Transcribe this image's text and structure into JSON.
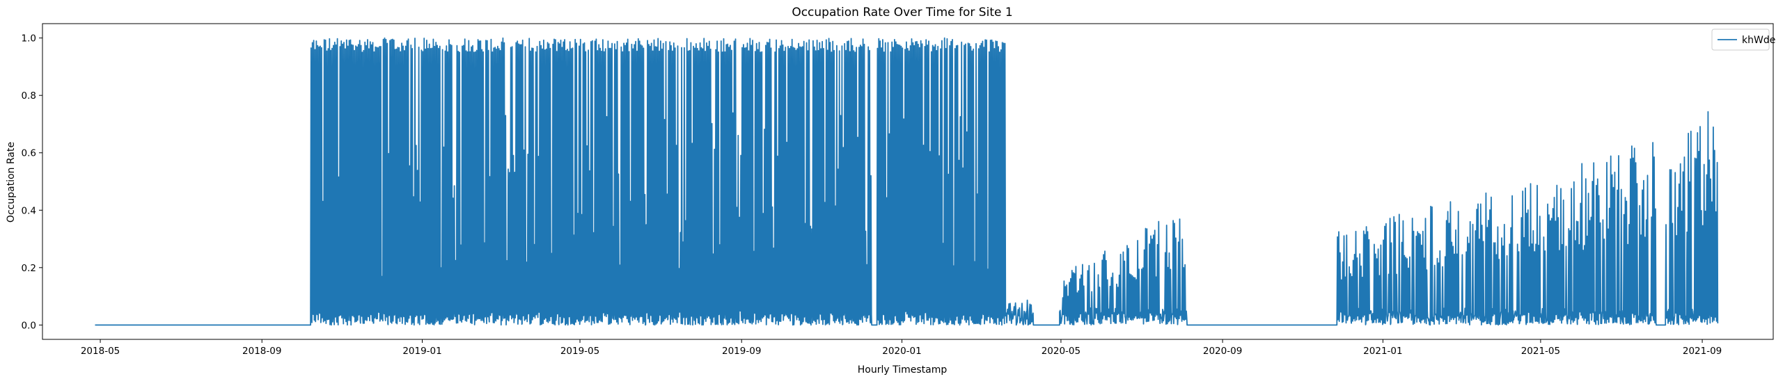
{
  "chart_data": {
    "type": "line",
    "title": "Occupation Rate Over Time for Site 1",
    "xlabel": "Hourly Timestamp",
    "ylabel": "Occupation Rate",
    "xlim": [
      "2018-03-18",
      "2021-10-25"
    ],
    "ylim": [
      -0.05,
      1.05
    ],
    "x_ticks": [
      {
        "date": "2018-05-01",
        "label": "2018-05"
      },
      {
        "date": "2018-09-01",
        "label": "2018-09"
      },
      {
        "date": "2019-01-01",
        "label": "2019-01"
      },
      {
        "date": "2019-05-01",
        "label": "2019-05"
      },
      {
        "date": "2019-09-01",
        "label": "2019-09"
      },
      {
        "date": "2020-01-01",
        "label": "2020-01"
      },
      {
        "date": "2020-05-01",
        "label": "2020-05"
      },
      {
        "date": "2020-09-01",
        "label": "2020-09"
      },
      {
        "date": "2021-01-01",
        "label": "2021-01"
      },
      {
        "date": "2021-05-01",
        "label": "2021-05"
      },
      {
        "date": "2021-09-01",
        "label": "2021-09"
      }
    ],
    "y_ticks": [
      {
        "value": 0.0,
        "label": "0.0"
      },
      {
        "value": 0.2,
        "label": "0.2"
      },
      {
        "value": 0.4,
        "label": "0.4"
      },
      {
        "value": 0.6,
        "label": "0.6"
      },
      {
        "value": 0.8,
        "label": "0.8"
      },
      {
        "value": 1.0,
        "label": "1.0"
      }
    ],
    "grid": false,
    "legend_position": "top-right",
    "series": [
      {
        "name": "khWdelivered",
        "color": "#1f77b4",
        "segments": [
          {
            "start": "2018-04-27",
            "end": "2018-10-08",
            "pattern": "flat",
            "level": 0
          },
          {
            "start": "2018-10-08",
            "end": "2019-12-09",
            "pattern": "full-daily",
            "peak_max": 1.0
          },
          {
            "start": "2019-12-09",
            "end": "2019-12-13",
            "pattern": "flat",
            "level": 0
          },
          {
            "start": "2019-12-13",
            "end": "2020-03-20",
            "pattern": "full-daily",
            "peak_max": 1.0
          },
          {
            "start": "2020-03-20",
            "end": "2020-04-10",
            "pattern": "low",
            "peak_max": 0.1
          },
          {
            "start": "2020-04-10",
            "end": "2020-04-30",
            "pattern": "flat",
            "level": 0
          },
          {
            "start": "2020-04-30",
            "end": "2020-08-05",
            "pattern": "rising",
            "peak_start": 0.18,
            "peak_end": 0.42
          },
          {
            "start": "2020-08-05",
            "end": "2020-11-27",
            "pattern": "flat",
            "level": 0
          },
          {
            "start": "2020-11-27",
            "end": "2021-07-28",
            "pattern": "rising",
            "peak_start": 0.33,
            "peak_end": 0.65
          },
          {
            "start": "2021-07-28",
            "end": "2021-08-04",
            "pattern": "flat",
            "level": 0
          },
          {
            "start": "2021-08-04",
            "end": "2021-09-13",
            "pattern": "rising",
            "peak_start": 0.55,
            "peak_end": 0.83
          }
        ]
      }
    ]
  }
}
